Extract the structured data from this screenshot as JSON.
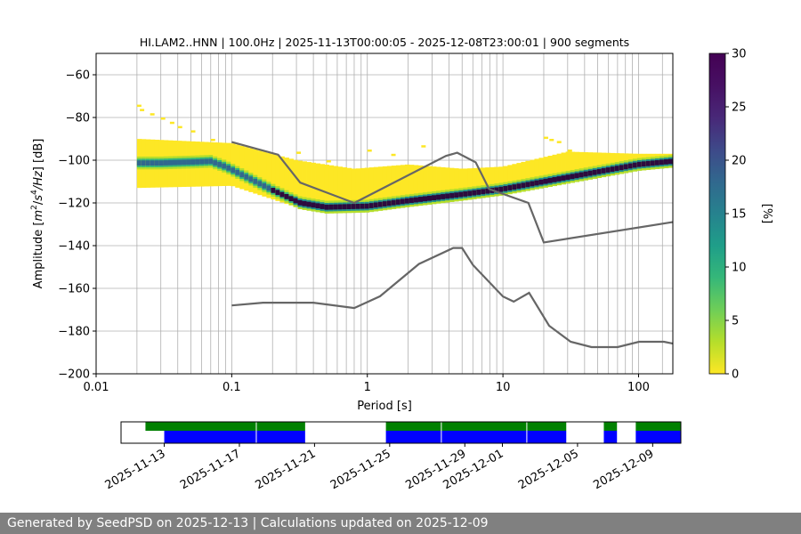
{
  "chart_data": {
    "type": "heatmap",
    "title": "HI.LAM2..HNN | 100.0Hz | 2025-11-13T00:00:05 - 2025-12-08T23:00:01 | 900 segments",
    "xlabel": "Period [s]",
    "ylabel_parts": [
      "Amplitude [",
      "m",
      "2",
      "/",
      "s",
      "4",
      "/Hz",
      "] [dB]"
    ],
    "xscale": "log",
    "xlim": [
      0.01,
      179
    ],
    "ylim": [
      -200,
      -50
    ],
    "x_ticks": [
      {
        "v": 0.01,
        "label": "0.01"
      },
      {
        "v": 0.1,
        "label": "0.1"
      },
      {
        "v": 1,
        "label": "1"
      },
      {
        "v": 10,
        "label": "10"
      },
      {
        "v": 100,
        "label": "100"
      }
    ],
    "y_ticks": [
      -200,
      -180,
      -160,
      -140,
      -120,
      -100,
      -80,
      -60
    ],
    "y_tick_labels": [
      "−200",
      "−180",
      "−160",
      "−140",
      "−120",
      "−100",
      "−80",
      "−60"
    ],
    "period_gridlines": [
      0.02,
      0.03,
      0.04,
      0.05,
      0.06,
      0.07,
      0.08,
      0.09,
      0.1,
      0.2,
      0.3,
      0.4,
      0.5,
      0.6,
      0.7,
      0.8,
      0.9,
      1,
      2,
      3,
      4,
      5,
      6,
      7,
      8,
      9,
      10,
      20,
      30,
      40,
      50,
      60,
      70,
      80,
      90,
      100,
      150
    ],
    "colorbar": {
      "label": "[%]",
      "min": 0,
      "max": 30,
      "ticks": [
        0,
        5,
        10,
        15,
        20,
        25,
        30
      ],
      "colormap": "viridis_r"
    },
    "noise_models": [
      {
        "name": "high_noise_model",
        "color": "#666666",
        "points": [
          [
            0.1,
            -91.5
          ],
          [
            0.22,
            -97.4
          ],
          [
            0.32,
            -110.5
          ],
          [
            0.8,
            -120
          ],
          [
            3.8,
            -98
          ],
          [
            4.6,
            -96.5
          ],
          [
            6.3,
            -101
          ],
          [
            7.9,
            -113.5
          ],
          [
            15.4,
            -120
          ],
          [
            20,
            -138.5
          ],
          [
            178,
            -129
          ]
        ]
      },
      {
        "name": "low_noise_model",
        "color": "#666666",
        "points": [
          [
            0.1,
            -168
          ],
          [
            0.17,
            -166.7
          ],
          [
            0.4,
            -166.7
          ],
          [
            0.8,
            -169.2
          ],
          [
            1.24,
            -163.7
          ],
          [
            2.4,
            -148.6
          ],
          [
            4.3,
            -141.1
          ],
          [
            5.0,
            -141.1
          ],
          [
            6.0,
            -149
          ],
          [
            10,
            -163.8
          ],
          [
            12,
            -166.2
          ],
          [
            15.6,
            -162.1
          ],
          [
            21.9,
            -177.5
          ],
          [
            31.6,
            -185
          ],
          [
            45,
            -187.5
          ],
          [
            70,
            -187.5
          ],
          [
            101,
            -185
          ],
          [
            154,
            -185
          ],
          [
            178,
            -185.8
          ]
        ]
      }
    ],
    "psd_mode": {
      "name": "mode",
      "color": "#2d1040",
      "points": [
        [
          0.03,
          -101.3
        ],
        [
          0.055,
          -100.8
        ],
        [
          0.07,
          -100.5
        ],
        [
          0.09,
          -103
        ],
        [
          0.13,
          -108
        ],
        [
          0.2,
          -114
        ],
        [
          0.32,
          -120
        ],
        [
          0.5,
          -122
        ],
        [
          1,
          -121.5
        ],
        [
          2,
          -119
        ],
        [
          5,
          -116
        ],
        [
          10,
          -113.5
        ],
        [
          30,
          -108
        ],
        [
          100,
          -102
        ],
        [
          178,
          -100.5
        ]
      ]
    },
    "psd_cloud": {
      "name": "percent_density",
      "upper_envelope": [
        [
          0.02,
          -90
        ],
        [
          0.1,
          -92
        ],
        [
          0.3,
          -100
        ],
        [
          0.8,
          -104
        ],
        [
          2,
          -102
        ],
        [
          5,
          -104
        ],
        [
          10,
          -103
        ],
        [
          30,
          -96
        ],
        [
          100,
          -97
        ],
        [
          178,
          -97
        ]
      ],
      "lower_envelope": [
        [
          0.02,
          -113
        ],
        [
          0.1,
          -112
        ],
        [
          0.3,
          -122
        ],
        [
          0.8,
          -123
        ],
        [
          2,
          -121
        ],
        [
          5,
          -118
        ],
        [
          10,
          -115
        ],
        [
          30,
          -110
        ],
        [
          100,
          -104
        ],
        [
          178,
          -102
        ]
      ]
    },
    "availability": {
      "x_ticks": [
        "2025-11-13",
        "2025-11-17",
        "2025-11-21",
        "2025-11-25",
        "2025-11-29",
        "2025-12-01",
        "2025-12-05",
        "2025-12-09"
      ],
      "x_tick_dates_offset": [
        0,
        4,
        8,
        12,
        16,
        18,
        22,
        26
      ],
      "xlim_days": [
        -2.3,
        27.5
      ],
      "green_intervals_days": [
        [
          -1.0,
          7.5
        ],
        [
          11.8,
          21.4
        ],
        [
          23.4,
          24.1
        ],
        [
          25.1,
          28.1
        ]
      ],
      "blue_intervals_days": [
        [
          0,
          7.5
        ],
        [
          11.8,
          21.4
        ],
        [
          23.4,
          24.1
        ],
        [
          25.1,
          28.1
        ]
      ],
      "gap_markers_days": [
        4.9,
        14.75,
        19.3
      ],
      "green_color": "#008000",
      "blue_color": "#0000ff"
    }
  },
  "footer": {
    "text": "Generated by SeedPSD on 2025-12-13 | Calculations updated on 2025-12-09"
  }
}
